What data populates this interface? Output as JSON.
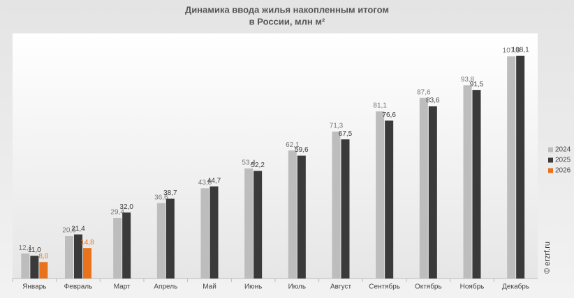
{
  "chart_data": {
    "type": "bar",
    "title": [
      "Динамика ввода жилья накопленным итогом",
      "в России, млн м²"
    ],
    "watermark": "© erzrf.ru",
    "categories": [
      "Январь",
      "Февраль",
      "Март",
      "Апрель",
      "Май",
      "Июнь",
      "Июль",
      "Август",
      "Сентябрь",
      "Октябрь",
      "Ноябрь",
      "Декабрь"
    ],
    "series": [
      {
        "name": "2024",
        "color": "#bdbdbd",
        "values": [
          12.1,
          20.6,
          29.4,
          36.6,
          43.8,
          53.4,
          62.1,
          71.3,
          81.1,
          87.6,
          93.8,
          107.8
        ],
        "value_labels": [
          "12,1",
          "20,6",
          "29,4",
          "36,6",
          "43,8",
          "53,4",
          "62,1",
          "71,3",
          "81,1",
          "87,6",
          "93,8",
          "107,8"
        ]
      },
      {
        "name": "2025",
        "color": "#3a3a3a",
        "values": [
          11.0,
          21.4,
          32.0,
          38.7,
          44.7,
          52.2,
          59.6,
          67.5,
          76.6,
          83.6,
          91.5,
          108.1
        ],
        "value_labels": [
          "11,0",
          "21,4",
          "32,0",
          "38,7",
          "44,7",
          "52,2",
          "59,6",
          "67,5",
          "76,6",
          "83,6",
          "91,5",
          "108,1"
        ]
      },
      {
        "name": "2026",
        "color": "#e8731c",
        "values": [
          8.0,
          14.8,
          null,
          null,
          null,
          null,
          null,
          null,
          null,
          null,
          null,
          null
        ],
        "value_labels": [
          "8,0",
          "14,8",
          null,
          null,
          null,
          null,
          null,
          null,
          null,
          null,
          null,
          null
        ]
      }
    ],
    "legend": "right"
  }
}
